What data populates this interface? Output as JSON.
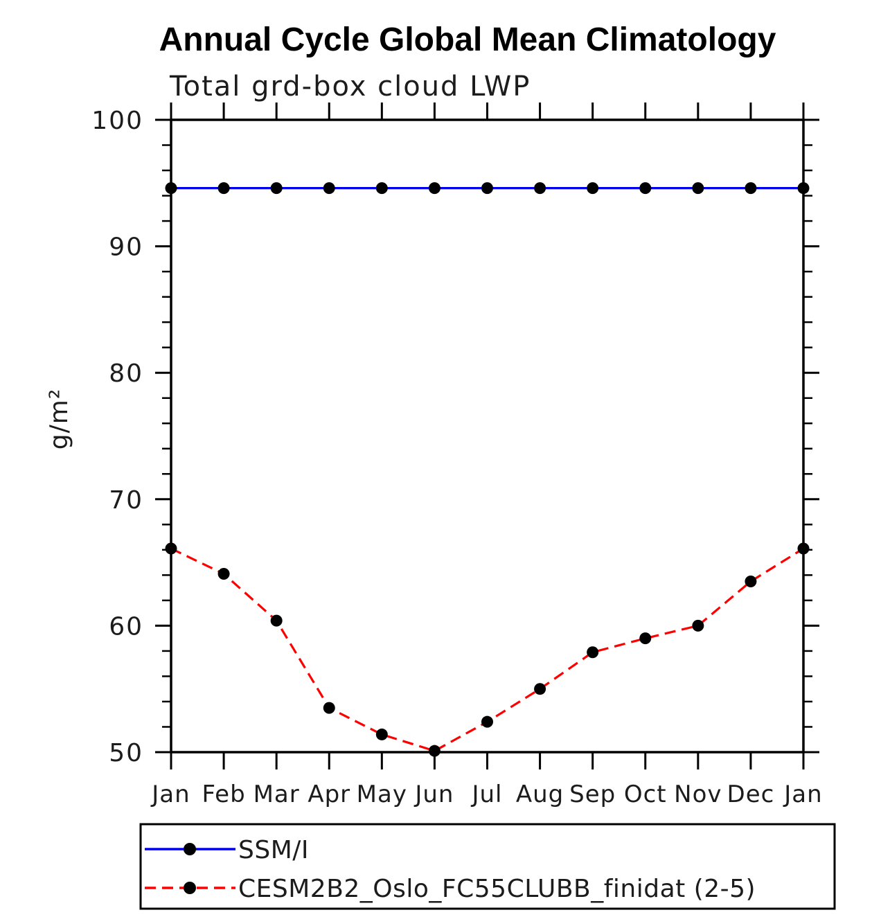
{
  "chart_data": {
    "type": "line",
    "title": "Annual Cycle Global Mean Climatology",
    "subtitle": "Total grd-box cloud LWP",
    "ylabel": "g/m²",
    "xlabel": "",
    "categories": [
      "Jan",
      "Feb",
      "Mar",
      "Apr",
      "May",
      "Jun",
      "Jul",
      "Aug",
      "Sep",
      "Oct",
      "Nov",
      "Dec",
      "Jan"
    ],
    "ylim": [
      50,
      100
    ],
    "y_major_ticks": [
      100,
      90,
      80,
      70,
      60,
      50
    ],
    "y_minor_tick_step": 2,
    "grid": false,
    "legend_position": "bottom",
    "series": [
      {
        "name": "SSM/I",
        "color": "#0000ee",
        "line_style": "solid",
        "marker": "filled-circle",
        "marker_color": "#000000",
        "values": [
          94.6,
          94.6,
          94.6,
          94.6,
          94.6,
          94.6,
          94.6,
          94.6,
          94.6,
          94.6,
          94.6,
          94.6,
          94.6
        ]
      },
      {
        "name": "CESM2B2_Oslo_FC55CLUBB_finidat (2-5)",
        "color": "#ff0000",
        "line_style": "dashed",
        "marker": "filled-circle",
        "marker_color": "#000000",
        "values": [
          66.1,
          64.1,
          60.4,
          53.5,
          51.4,
          50.1,
          52.4,
          55.0,
          57.9,
          59.0,
          60.0,
          63.5,
          66.1
        ]
      }
    ]
  },
  "colors": {
    "background": "#ffffff",
    "axis": "#000000",
    "text": "#1c1c1c",
    "ssmi_line": "#0000ee",
    "cesm_line": "#ff0000",
    "marker": "#000000"
  }
}
